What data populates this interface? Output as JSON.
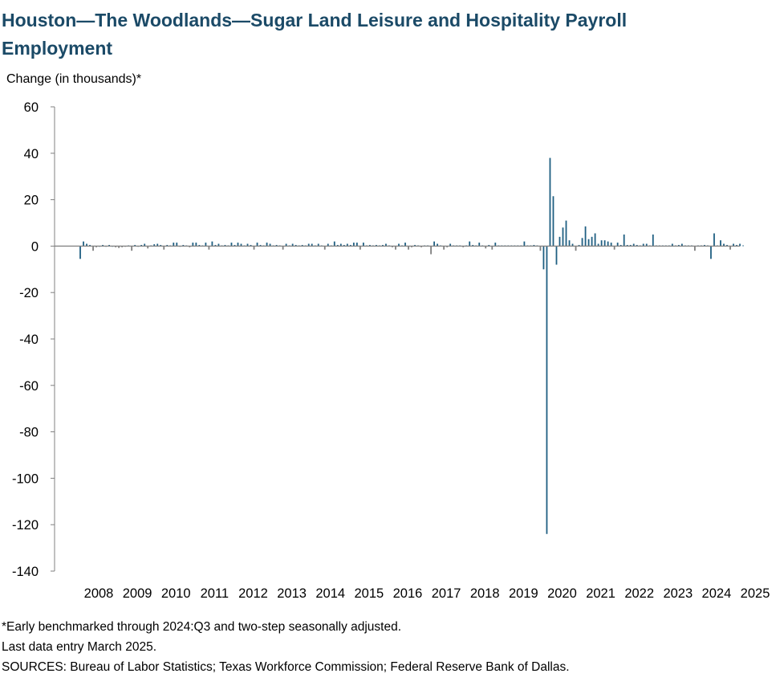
{
  "title": "Houston—The Woodlands—Sugar Land Leisure and Hospitality Payroll Employment",
  "notes": [
    "*Early benchmarked through 2024:Q3 and two-step seasonally adjusted.",
    "Last data entry March 2025.",
    "SOURCES: Bureau of Labor Statistics; Texas Workforce Commission; Federal Reserve Bank of Dallas."
  ],
  "colors": {
    "bar": "#1f5f82",
    "negative_bar": "#7f7f7f",
    "title": "#1b4a67",
    "axis": "#808080"
  },
  "chart_data": {
    "type": "bar",
    "title": "Houston—The Woodlands—Sugar Land Leisure and Hospitality Payroll Employment",
    "ylabel": "Change (in thousands)*",
    "xlabel": "",
    "ylim": [
      -140,
      60
    ],
    "yticks": [
      60,
      40,
      20,
      0,
      -20,
      -40,
      -60,
      -80,
      -100,
      -120,
      -140
    ],
    "xticks": [
      "2008",
      "2009",
      "2010",
      "2011",
      "2012",
      "2013",
      "2014",
      "2015",
      "2016",
      "2017",
      "2018",
      "2019",
      "2020",
      "2021",
      "2022",
      "2023",
      "2024",
      "2025"
    ],
    "start": "2008-01",
    "frequency": "monthly",
    "grid": false,
    "values": [
      -5.5,
      2.0,
      1.0,
      0.5,
      -2.0,
      -0.5,
      0.0,
      0.5,
      0.0,
      0.5,
      0.0,
      -0.5,
      -0.8,
      -0.5,
      -0.3,
      0.3,
      -2.0,
      0.5,
      0.0,
      0.5,
      1.0,
      -1.0,
      0.3,
      0.8,
      1.0,
      0.5,
      -1.5,
      0.5,
      0.3,
      1.5,
      1.5,
      0.0,
      0.5,
      0.3,
      -0.5,
      1.5,
      1.5,
      0.5,
      0.3,
      1.5,
      -1.5,
      2.0,
      0.5,
      1.0,
      0.3,
      0.5,
      0.3,
      1.5,
      0.5,
      1.5,
      1.0,
      0.3,
      1.0,
      0.5,
      -1.5,
      1.5,
      0.5,
      0.3,
      1.5,
      1.0,
      0.3,
      0.5,
      0.3,
      -1.5,
      1.0,
      0.3,
      1.0,
      0.5,
      0.3,
      0.5,
      0.3,
      1.0,
      1.0,
      0.3,
      1.0,
      0.3,
      -1.5,
      1.0,
      0.3,
      2.0,
      0.5,
      1.0,
      0.5,
      1.0,
      0.5,
      1.5,
      1.5,
      -1.5,
      1.5,
      0.3,
      0.5,
      0.3,
      0.5,
      0.3,
      0.5,
      1.0,
      0.3,
      -0.5,
      -1.5,
      1.0,
      0.3,
      1.5,
      -1.5,
      -0.5,
      0.5,
      0.3,
      -0.5,
      0.3,
      0.3,
      -3.5,
      2.0,
      1.0,
      0.3,
      -1.5,
      -0.5,
      1.0,
      0.3,
      0.3,
      0.3,
      -0.5,
      0.3,
      2.0,
      0.5,
      0.3,
      1.5,
      0.3,
      -1.0,
      0.5,
      -1.5,
      1.5,
      0.3,
      0.3,
      0.3,
      0.3,
      0.3,
      0.3,
      0.3,
      0.3,
      2.0,
      0.3,
      0.3,
      0.5,
      0.3,
      -2.0,
      -10.0,
      -124.0,
      38.0,
      21.5,
      -8.0,
      4.0,
      8.0,
      11.0,
      2.5,
      1.0,
      -2.0,
      0.5,
      3.5,
      8.5,
      3.0,
      4.0,
      5.5,
      1.0,
      2.5,
      2.5,
      2.0,
      1.5,
      -1.5,
      1.5,
      0.5,
      5.0,
      0.5,
      0.5,
      1.0,
      0.5,
      0.3,
      1.0,
      1.0,
      0.3,
      5.0,
      0.3,
      0.3,
      0.3,
      0.3,
      0.3,
      1.0,
      0.3,
      0.5,
      1.0,
      0.3,
      0.3,
      0.3,
      -2.0,
      0.3,
      0.3,
      0.5,
      0.3,
      -5.5,
      5.5,
      0.3,
      2.5,
      1.0,
      0.5,
      -1.5,
      1.0,
      0.5,
      1.0,
      0.3
    ]
  }
}
